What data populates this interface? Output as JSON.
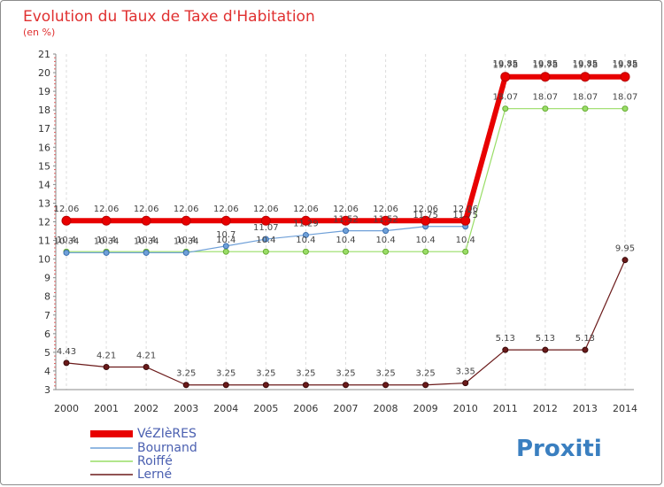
{
  "chart_data": {
    "type": "line",
    "title": "Evolution du Taux de Taxe d'Habitation",
    "subtitle": "(en %)",
    "xlabel": "",
    "ylabel": "",
    "x": [
      2000,
      2001,
      2002,
      2003,
      2004,
      2005,
      2006,
      2007,
      2008,
      2009,
      2010,
      2011,
      2012,
      2013,
      2014
    ],
    "ylim": [
      3,
      21
    ],
    "yticks": [
      3,
      4,
      5,
      6,
      7,
      8,
      9,
      10,
      11,
      12,
      13,
      14,
      15,
      16,
      17,
      18,
      19,
      20,
      21
    ],
    "grid": "vertical dashed",
    "legend_placement": "bottom-left",
    "series": [
      {
        "name": "VéZIèRES",
        "color": "#e80000",
        "values": [
          12.06,
          12.06,
          12.06,
          12.06,
          12.06,
          12.06,
          12.06,
          12.06,
          12.06,
          12.06,
          12.06,
          19.78,
          19.78,
          19.78,
          19.78
        ],
        "labels": [
          "12.06",
          "12.06",
          "12.06",
          "12.06",
          "12.06",
          "12.06",
          "12.06",
          "12.06",
          "12.06",
          "12.06",
          "12.06",
          "19.78",
          "19.78",
          "19.78",
          "19.78"
        ]
      },
      {
        "name": "Bournand",
        "color": "#6fa0d8",
        "values": [
          10.34,
          10.34,
          10.34,
          10.34,
          10.7,
          11.07,
          11.29,
          11.52,
          11.52,
          11.75,
          11.75,
          19.85,
          19.85,
          19.85,
          19.85
        ],
        "labels": [
          "10.34",
          "10.34",
          "10.34",
          "10.34",
          "10.7",
          "11.07",
          "11.29",
          "11.52",
          "11.52",
          "11.75",
          "11.75",
          "19.85",
          "19.85",
          "19.85",
          "19.85"
        ]
      },
      {
        "name": "Roiffé",
        "color": "#99dd66",
        "values": [
          10.4,
          10.4,
          10.4,
          10.4,
          10.4,
          10.4,
          10.4,
          10.4,
          10.4,
          10.4,
          10.4,
          18.07,
          18.07,
          18.07,
          18.07
        ],
        "labels": [
          "10.4",
          "10.4",
          "10.4",
          "10.4",
          "10.4",
          "10.4",
          "10.4",
          "10.4",
          "10.4",
          "10.4",
          "10.4",
          "18.07",
          "18.07",
          "18.07",
          "18.07"
        ]
      },
      {
        "name": "Lerné",
        "color": "#6b1a1a",
        "values": [
          4.43,
          4.21,
          4.21,
          3.25,
          3.25,
          3.25,
          3.25,
          3.25,
          3.25,
          3.25,
          3.35,
          5.13,
          5.13,
          5.13,
          9.95
        ],
        "labels": [
          "4.43",
          "4.21",
          "4.21",
          "3.25",
          "3.25",
          "3.25",
          "3.25",
          "3.25",
          "3.25",
          "3.25",
          "3.35",
          "5.13",
          "5.13",
          "5.13",
          "9.95"
        ]
      }
    ]
  },
  "logo": {
    "text": "Proxiti"
  }
}
